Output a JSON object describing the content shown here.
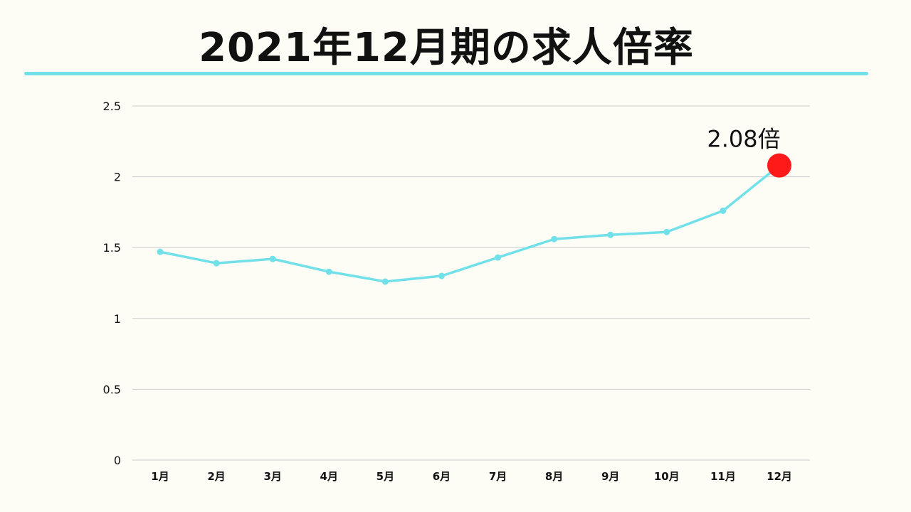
{
  "title": "2021年12月期の求人倍率",
  "colors": {
    "line": "#72e0e8",
    "highlight": "#ff1a1a",
    "grid": "#cccccc",
    "rule": "#72e0e8"
  },
  "chart_data": {
    "type": "line",
    "title": "2021年12月期の求人倍率",
    "xlabel": "",
    "ylabel": "",
    "categories": [
      "1月",
      "2月",
      "3月",
      "4月",
      "5月",
      "6月",
      "7月",
      "8月",
      "9月",
      "10月",
      "11月",
      "12月"
    ],
    "series": [
      {
        "values": [
          1.47,
          1.39,
          1.42,
          1.33,
          1.26,
          1.3,
          1.43,
          1.56,
          1.59,
          1.61,
          1.76,
          2.08
        ]
      }
    ],
    "ylim": [
      0,
      2.5
    ],
    "yticks": [
      "0",
      "0.5",
      "1",
      "1.5",
      "2",
      "2.5"
    ],
    "grid": true,
    "annotation": {
      "category": "12月",
      "text": "2.08倍"
    }
  }
}
